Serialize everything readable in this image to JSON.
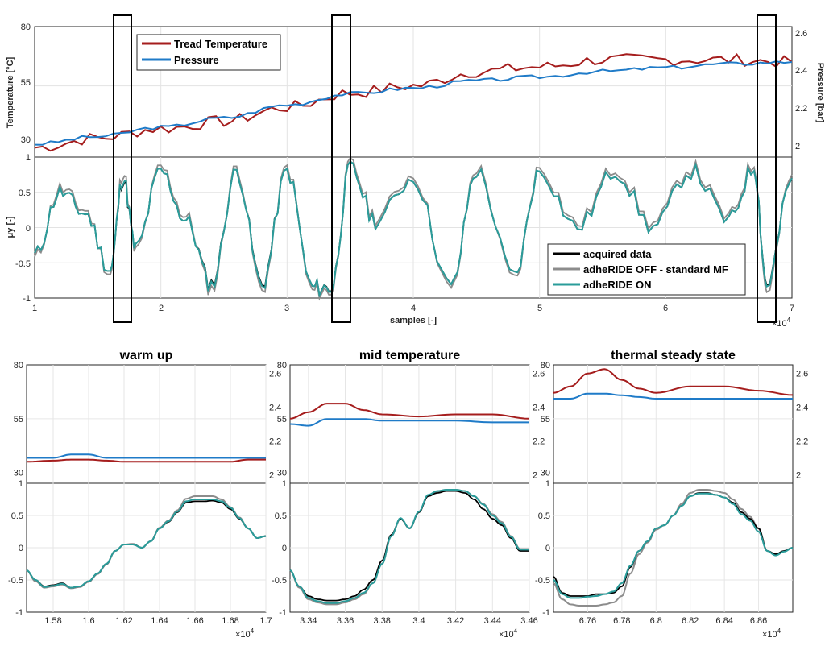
{
  "colors": {
    "tread_temperature": "#a51d1d",
    "pressure": "#1f7bc8",
    "acquired": "#000000",
    "adheride_off": "#8c8c8c",
    "adheride_on": "#2a9c9a",
    "highlight_box": "#000000"
  },
  "main_plot": {
    "top_legend": [
      "Tread Temperature",
      "Pressure"
    ],
    "top_ylabel_left": "Temperature [°C]",
    "top_ylabel_right": "Pressure [bar]",
    "top_yticks_left": [
      "30",
      "55",
      "80"
    ],
    "top_yticks_right": [
      "2",
      "2.2",
      "2.4",
      "2.6"
    ],
    "bottom_ylabel": "μy [-]",
    "bottom_yticks": [
      "-1",
      "-0.5",
      "0",
      "0.5",
      "1"
    ],
    "xticks": [
      "1",
      "2",
      "3",
      "4",
      "5",
      "6",
      "7"
    ],
    "xlabel": "samples [-]",
    "xscale_base": "×10",
    "xscale_exp": "4",
    "bottom_legend": [
      "acquired data",
      "adheRIDE OFF - standard MF",
      "adheRIDE ON"
    ],
    "highlight_boxes": [
      "warm up",
      "mid temperature",
      "thermal steady state"
    ]
  },
  "subplots": [
    {
      "title": "warm up",
      "xticks": [
        "1.58",
        "1.6",
        "1.62",
        "1.64",
        "1.66",
        "1.68",
        "1.7"
      ],
      "xscale_base": "×10",
      "xscale_exp": "4",
      "top_yticks_left": [
        "30",
        "55",
        "80"
      ],
      "top_yticks_right": [
        "2",
        "2.2",
        "2.4",
        "2.6"
      ],
      "bottom_yticks": [
        "-1",
        "-0.5",
        "0",
        "0.5",
        "1"
      ]
    },
    {
      "title": "mid temperature",
      "xticks": [
        "3.34",
        "3.36",
        "3.38",
        "3.4",
        "3.42",
        "3.44",
        "3.46"
      ],
      "xscale_base": "×10",
      "xscale_exp": "4",
      "top_yticks_left": [
        "30",
        "55",
        "80"
      ],
      "top_yticks_right": [
        "2",
        "2.2",
        "2.4",
        "2.6"
      ],
      "bottom_yticks": [
        "-1",
        "-0.5",
        "0",
        "0.5",
        "1"
      ]
    },
    {
      "title": "thermal steady state",
      "xticks": [
        "6.76",
        "6.78",
        "6.8",
        "6.82",
        "6.84",
        "6.86"
      ],
      "xscale_base": "×10",
      "xscale_exp": "4",
      "top_yticks_left": [
        "30",
        "55",
        "80"
      ],
      "top_yticks_right": [
        "2",
        "2.2",
        "2.4",
        "2.6"
      ],
      "bottom_yticks": [
        "-1",
        "-0.5",
        "0",
        "0.5",
        "1"
      ]
    }
  ],
  "chart_data": [
    {
      "type": "line",
      "xlabel": "samples [-]",
      "xlim": [
        10000,
        70000
      ],
      "y_left_label": "Temperature [°C]",
      "y_left_lim": [
        25,
        80
      ],
      "y_right_label": "Pressure [bar]",
      "y_right_lim": [
        1.95,
        2.65
      ],
      "x": [
        10000,
        15000,
        20000,
        25000,
        30000,
        35000,
        40000,
        45000,
        50000,
        55000,
        60000,
        65000,
        70000
      ],
      "series": [
        {
          "name": "Tread Temperature",
          "axis": "left",
          "values": [
            29,
            33,
            37,
            40,
            46,
            52,
            55,
            61,
            63,
            66,
            66,
            66,
            65
          ]
        },
        {
          "name": "Pressure",
          "axis": "right",
          "values": [
            2.02,
            2.06,
            2.11,
            2.16,
            2.23,
            2.29,
            2.32,
            2.36,
            2.38,
            2.41,
            2.43,
            2.45,
            2.46
          ]
        }
      ]
    },
    {
      "type": "line",
      "xlabel": "samples [-]",
      "xlim": [
        10000,
        70000
      ],
      "ylabel": "μy [-]",
      "ylim": [
        -1,
        1
      ],
      "x": [
        10000,
        12000,
        14000,
        16000,
        17000,
        18000,
        20000,
        22000,
        24000,
        26000,
        28000,
        30000,
        32000,
        33500,
        35000,
        37000,
        40000,
        43000,
        45000,
        48000,
        50000,
        53000,
        56000,
        59000,
        62000,
        65000,
        67000,
        68000,
        70000
      ],
      "series": [
        {
          "name": "acquired data",
          "values": [
            -0.4,
            0.5,
            0.2,
            -0.6,
            0.7,
            -0.3,
            0.8,
            0.1,
            -0.8,
            0.8,
            -0.8,
            0.8,
            -0.85,
            -0.85,
            0.85,
            0.1,
            0.7,
            -0.85,
            0.8,
            -0.7,
            0.8,
            0.0,
            0.8,
            0.0,
            0.8,
            0.1,
            0.85,
            -0.8,
            0.7
          ]
        },
        {
          "name": "adheRIDE OFF - standard MF",
          "values": [
            -0.45,
            0.55,
            0.25,
            -0.65,
            0.8,
            -0.35,
            0.85,
            0.15,
            -0.88,
            0.85,
            -0.88,
            0.85,
            -0.9,
            -0.9,
            0.9,
            0.15,
            0.75,
            -0.9,
            0.85,
            -0.75,
            0.85,
            0.05,
            0.85,
            0.05,
            0.85,
            0.15,
            0.9,
            -0.9,
            0.75
          ]
        },
        {
          "name": "adheRIDE ON",
          "values": [
            -0.4,
            0.5,
            0.2,
            -0.6,
            0.72,
            -0.3,
            0.8,
            0.1,
            -0.82,
            0.8,
            -0.82,
            0.8,
            -0.85,
            -0.86,
            0.85,
            0.1,
            0.7,
            -0.85,
            0.8,
            -0.7,
            0.8,
            0.0,
            0.8,
            0.0,
            0.8,
            0.1,
            0.85,
            -0.82,
            0.7
          ]
        }
      ]
    },
    {
      "type": "line",
      "title": "warm up",
      "xlim": [
        15650,
        17000
      ],
      "y_left_lim": [
        25,
        80
      ],
      "y_right_lim": [
        1.95,
        2.65
      ],
      "x": [
        15650,
        15800,
        15900,
        16000,
        16100,
        16200,
        16400,
        16600,
        16800,
        16900,
        17000
      ],
      "series": [
        {
          "name": "Tread Temperature",
          "axis": "left",
          "values": [
            35,
            35.5,
            36,
            36,
            35.5,
            35,
            35,
            35,
            35,
            36,
            36
          ]
        },
        {
          "name": "Pressure",
          "axis": "right",
          "values": [
            2.1,
            2.1,
            2.12,
            2.12,
            2.1,
            2.1,
            2.1,
            2.1,
            2.1,
            2.1,
            2.1
          ]
        }
      ]
    },
    {
      "type": "line",
      "title": "warm up",
      "xlim": [
        15650,
        17000
      ],
      "ylim": [
        -1,
        1
      ],
      "x": [
        15650,
        15700,
        15750,
        15800,
        15850,
        15900,
        15950,
        16000,
        16050,
        16100,
        16150,
        16200,
        16250,
        16300,
        16350,
        16400,
        16450,
        16500,
        16550,
        16600,
        16650,
        16700,
        16750,
        16800,
        16850,
        16900,
        16950,
        17000
      ],
      "series": [
        {
          "name": "acquired data",
          "values": [
            -0.35,
            -0.5,
            -0.6,
            -0.58,
            -0.55,
            -0.62,
            -0.6,
            -0.52,
            -0.4,
            -0.25,
            -0.05,
            0.05,
            0.05,
            0.0,
            0.1,
            0.3,
            0.4,
            0.55,
            0.7,
            0.72,
            0.72,
            0.73,
            0.7,
            0.6,
            0.45,
            0.3,
            0.15,
            0.18
          ]
        },
        {
          "name": "adheRIDE OFF - standard MF",
          "values": [
            -0.35,
            -0.52,
            -0.62,
            -0.6,
            -0.57,
            -0.63,
            -0.61,
            -0.53,
            -0.41,
            -0.26,
            -0.05,
            0.05,
            0.06,
            0.0,
            0.1,
            0.31,
            0.42,
            0.58,
            0.76,
            0.8,
            0.8,
            0.8,
            0.75,
            0.63,
            0.47,
            0.3,
            0.15,
            0.18
          ]
        },
        {
          "name": "adheRIDE ON",
          "values": [
            -0.35,
            -0.5,
            -0.61,
            -0.59,
            -0.56,
            -0.62,
            -0.6,
            -0.52,
            -0.4,
            -0.25,
            -0.05,
            0.05,
            0.05,
            0.0,
            0.1,
            0.3,
            0.41,
            0.56,
            0.72,
            0.75,
            0.75,
            0.75,
            0.72,
            0.62,
            0.46,
            0.3,
            0.15,
            0.18
          ]
        }
      ]
    },
    {
      "type": "line",
      "title": "mid temperature",
      "xlim": [
        33300,
        34600
      ],
      "y_left_lim": [
        25,
        80
      ],
      "y_right_lim": [
        1.95,
        2.65
      ],
      "x": [
        33300,
        33400,
        33500,
        33600,
        33700,
        33800,
        34000,
        34200,
        34400,
        34600
      ],
      "series": [
        {
          "name": "Tread Temperature",
          "axis": "left",
          "values": [
            55,
            58,
            62,
            62,
            59,
            57,
            56,
            57,
            57,
            55
          ]
        },
        {
          "name": "Pressure",
          "axis": "right",
          "values": [
            2.3,
            2.29,
            2.33,
            2.33,
            2.33,
            2.32,
            2.32,
            2.32,
            2.31,
            2.31
          ]
        }
      ]
    },
    {
      "type": "line",
      "title": "mid temperature",
      "xlim": [
        33300,
        34600
      ],
      "ylim": [
        -1,
        1
      ],
      "x": [
        33300,
        33350,
        33400,
        33450,
        33500,
        33550,
        33600,
        33650,
        33700,
        33750,
        33800,
        33850,
        33900,
        33950,
        34000,
        34050,
        34100,
        34150,
        34200,
        34250,
        34300,
        34350,
        34400,
        34450,
        34500,
        34550,
        34600
      ],
      "series": [
        {
          "name": "acquired data",
          "values": [
            -0.35,
            -0.6,
            -0.75,
            -0.8,
            -0.82,
            -0.82,
            -0.8,
            -0.75,
            -0.65,
            -0.5,
            -0.2,
            0.2,
            0.45,
            0.3,
            0.55,
            0.8,
            0.85,
            0.88,
            0.88,
            0.85,
            0.75,
            0.6,
            0.45,
            0.35,
            0.15,
            -0.05,
            -0.05
          ]
        },
        {
          "name": "adheRIDE OFF - standard MF",
          "values": [
            -0.35,
            -0.62,
            -0.8,
            -0.85,
            -0.88,
            -0.88,
            -0.85,
            -0.8,
            -0.72,
            -0.55,
            -0.25,
            0.18,
            0.45,
            0.3,
            0.55,
            0.8,
            0.86,
            0.9,
            0.9,
            0.88,
            0.8,
            0.68,
            0.52,
            0.4,
            0.18,
            -0.02,
            -0.02
          ]
        },
        {
          "name": "adheRIDE ON",
          "values": [
            -0.35,
            -0.6,
            -0.78,
            -0.83,
            -0.86,
            -0.86,
            -0.83,
            -0.78,
            -0.7,
            -0.55,
            -0.25,
            0.18,
            0.46,
            0.3,
            0.56,
            0.82,
            0.88,
            0.9,
            0.9,
            0.88,
            0.8,
            0.67,
            0.5,
            0.38,
            0.17,
            -0.03,
            -0.03
          ]
        }
      ]
    },
    {
      "type": "line",
      "title": "thermal steady state",
      "xlim": [
        67400,
        68800
      ],
      "y_left_lim": [
        25,
        80
      ],
      "y_right_lim": [
        1.95,
        2.65
      ],
      "x": [
        67400,
        67500,
        67600,
        67700,
        67800,
        67900,
        68000,
        68200,
        68400,
        68600,
        68800
      ],
      "series": [
        {
          "name": "Tread Temperature",
          "axis": "left",
          "values": [
            67,
            70,
            76,
            78,
            73,
            69,
            67,
            70,
            70,
            68,
            66
          ]
        },
        {
          "name": "Pressure",
          "axis": "right",
          "values": [
            2.45,
            2.45,
            2.48,
            2.48,
            2.47,
            2.46,
            2.45,
            2.45,
            2.45,
            2.45,
            2.45
          ]
        }
      ]
    },
    {
      "type": "line",
      "title": "thermal steady state",
      "xlim": [
        67400,
        68800
      ],
      "ylim": [
        -1,
        1
      ],
      "x": [
        67400,
        67450,
        67500,
        67550,
        67600,
        67650,
        67700,
        67750,
        67800,
        67850,
        67900,
        67950,
        68000,
        68050,
        68100,
        68150,
        68200,
        68250,
        68300,
        68350,
        68400,
        68450,
        68500,
        68550,
        68600,
        68650,
        68700,
        68750,
        68800
      ],
      "series": [
        {
          "name": "acquired data",
          "values": [
            -0.45,
            -0.7,
            -0.75,
            -0.75,
            -0.75,
            -0.72,
            -0.72,
            -0.7,
            -0.6,
            -0.3,
            -0.05,
            0.1,
            0.3,
            0.35,
            0.5,
            0.65,
            0.8,
            0.85,
            0.85,
            0.82,
            0.78,
            0.7,
            0.55,
            0.45,
            0.3,
            -0.05,
            -0.1,
            -0.05,
            0.0
          ]
        },
        {
          "name": "adheRIDE OFF - standard MF",
          "values": [
            -0.55,
            -0.8,
            -0.88,
            -0.9,
            -0.9,
            -0.9,
            -0.88,
            -0.85,
            -0.75,
            -0.4,
            -0.1,
            0.08,
            0.28,
            0.35,
            0.5,
            0.68,
            0.85,
            0.9,
            0.9,
            0.88,
            0.85,
            0.75,
            0.6,
            0.48,
            0.3,
            -0.05,
            -0.1,
            -0.05,
            0.0
          ]
        },
        {
          "name": "adheRIDE ON",
          "values": [
            -0.5,
            -0.72,
            -0.78,
            -0.78,
            -0.76,
            -0.75,
            -0.72,
            -0.68,
            -0.55,
            -0.28,
            -0.05,
            0.1,
            0.3,
            0.35,
            0.5,
            0.65,
            0.8,
            0.84,
            0.84,
            0.82,
            0.78,
            0.68,
            0.52,
            0.42,
            0.25,
            -0.05,
            -0.12,
            -0.06,
            0.0
          ]
        }
      ]
    }
  ]
}
